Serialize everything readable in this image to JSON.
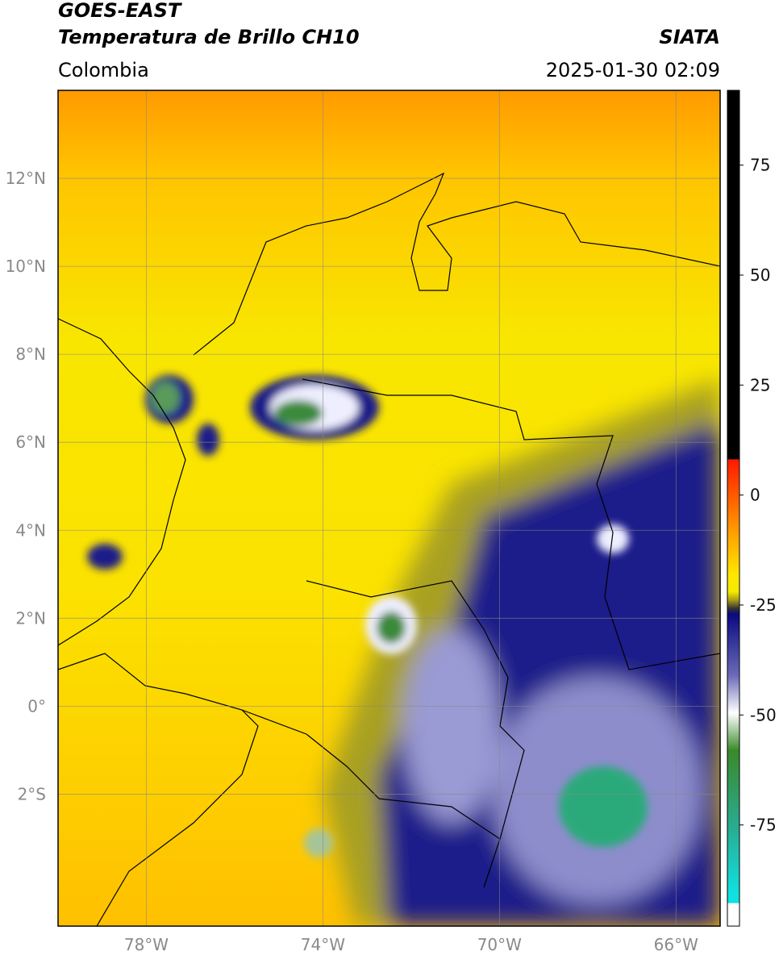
{
  "header": {
    "satellite": "GOES-EAST",
    "product": "Temperatura de Brillo CH10",
    "region": "Colombia",
    "source": "SIATA",
    "datetime": "2025-01-30 02:09"
  },
  "map": {
    "lon_range": [
      -80,
      -65
    ],
    "lat_range": [
      -5,
      14
    ],
    "lat_ticks": [
      {
        "value": 12,
        "label": "12°N"
      },
      {
        "value": 10,
        "label": "10°N"
      },
      {
        "value": 8,
        "label": "8°N"
      },
      {
        "value": 6,
        "label": "6°N"
      },
      {
        "value": 4,
        "label": "4°N"
      },
      {
        "value": 2,
        "label": "2°N"
      },
      {
        "value": 0,
        "label": "0°"
      },
      {
        "value": -2,
        "label": "2°S"
      }
    ],
    "lon_ticks": [
      {
        "value": -78,
        "label": "78°W"
      },
      {
        "value": -74,
        "label": "74°W"
      },
      {
        "value": -70,
        "label": "70°W"
      },
      {
        "value": -66,
        "label": "66°W"
      }
    ]
  },
  "colorbar": {
    "lim": [
      -98,
      92
    ],
    "ticks": [
      75,
      50,
      25,
      0,
      -25,
      -50,
      -75
    ]
  }
}
